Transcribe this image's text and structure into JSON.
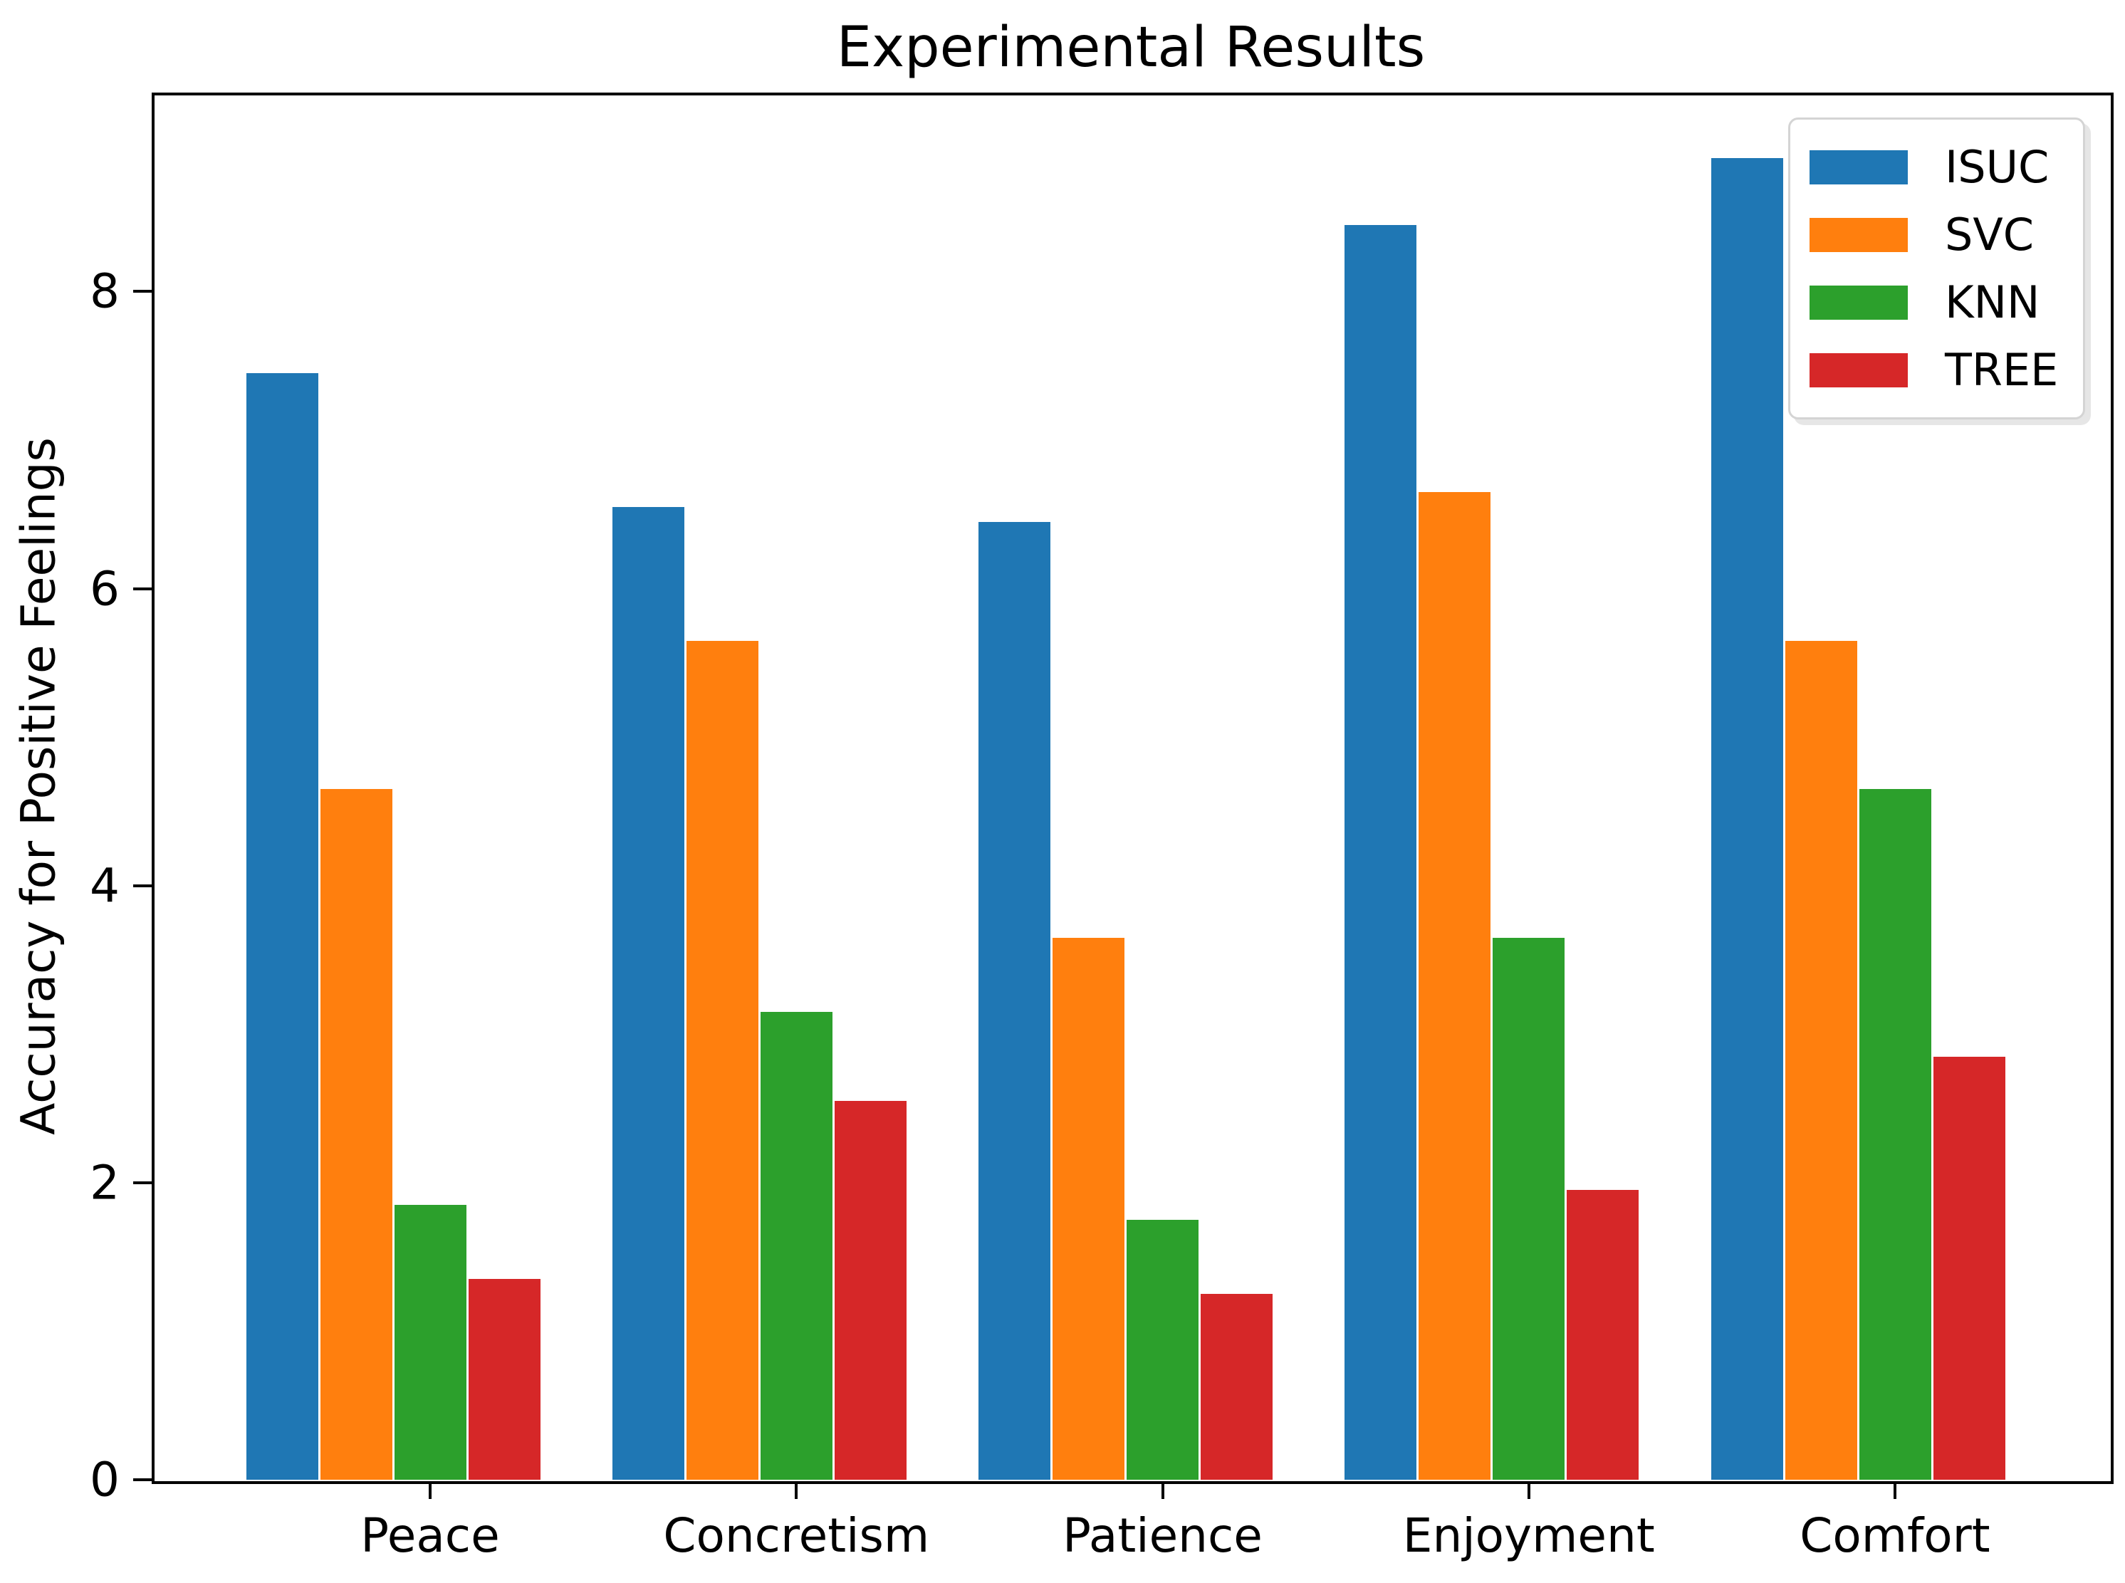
{
  "title": "Experimental Results",
  "y_axis_label": "Accuracy for Positive Feelings",
  "chart_data": {
    "type": "bar",
    "title": "Experimental Results",
    "xlabel": "",
    "ylabel": "Accuracy for Positive Feelings",
    "categories": [
      "Peace",
      "Concretism",
      "Patience",
      "Enjoyment",
      "Comfort"
    ],
    "series": [
      {
        "name": "ISUC",
        "color": "#1f77b4",
        "values": [
          7.45,
          6.55,
          6.45,
          8.45,
          8.9
        ]
      },
      {
        "name": "SVC",
        "color": "#ff7f0e",
        "values": [
          4.65,
          5.65,
          3.65,
          6.65,
          5.65
        ]
      },
      {
        "name": "KNN",
        "color": "#2ca02c",
        "values": [
          1.85,
          3.15,
          1.75,
          3.65,
          4.65
        ]
      },
      {
        "name": "TREE",
        "color": "#d62728",
        "values": [
          1.35,
          2.55,
          1.25,
          1.95,
          2.85
        ]
      }
    ],
    "ylim": [
      0,
      9.33
    ],
    "yticks": [
      "0",
      "2",
      "4",
      "6",
      "8"
    ],
    "ytick_values": [
      0,
      2,
      4,
      6,
      8
    ],
    "grid": false,
    "legend_position": "upper right",
    "background_color": "#ffffff",
    "spine_color": "#000000"
  }
}
